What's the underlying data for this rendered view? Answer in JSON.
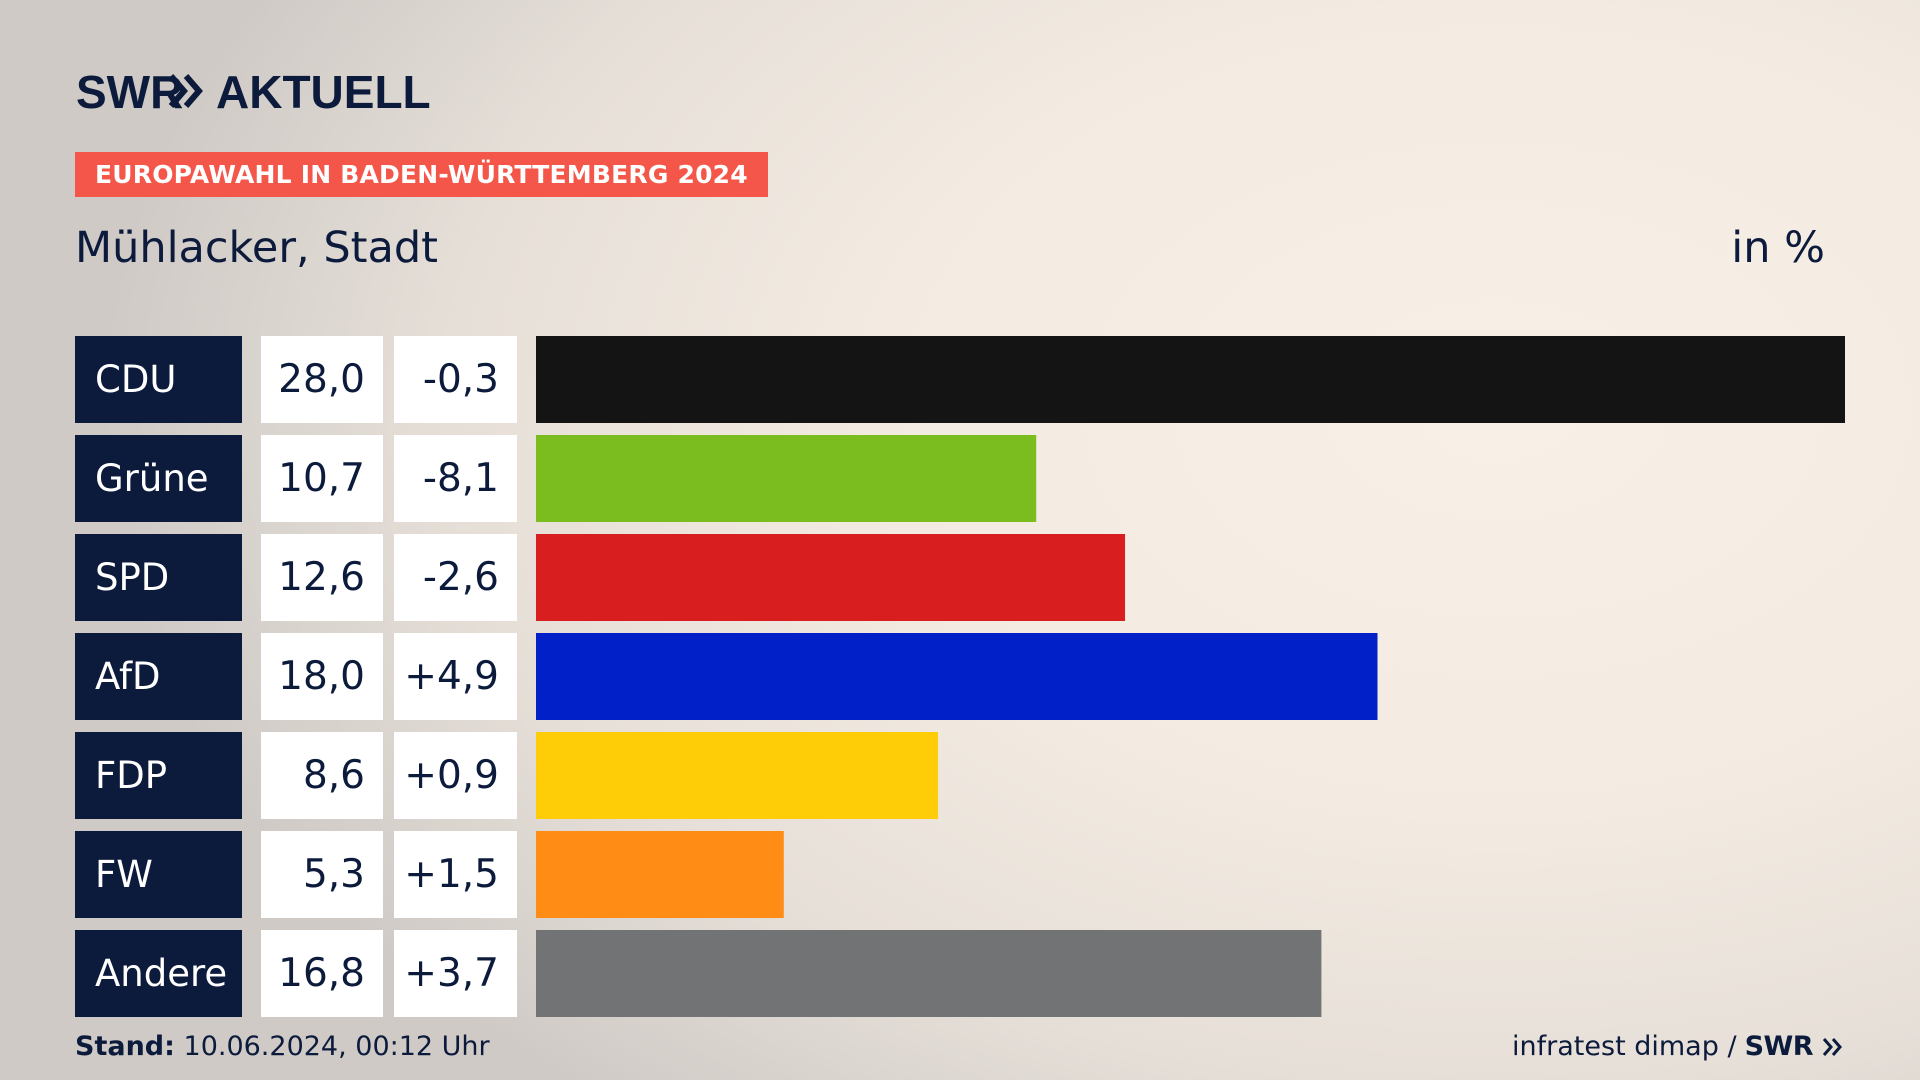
{
  "header": {
    "logo_text": "SWR",
    "logo_suffix": "AKTUELL",
    "badge": "EUROPAWAHL IN BADEN-WÜRTTEMBERG 2024",
    "subtitle": "Mühlacker, Stadt",
    "unit": "in %"
  },
  "colors": {
    "navy": "#0c1b3c",
    "badge": "#f4574a"
  },
  "chart_data": {
    "type": "bar",
    "orientation": "horizontal",
    "categories": [
      "CDU",
      "Grüne",
      "SPD",
      "AfD",
      "FDP",
      "FW",
      "Andere"
    ],
    "values": [
      28.0,
      10.7,
      12.6,
      18.0,
      8.6,
      5.3,
      16.8
    ],
    "value_labels": [
      "28,0",
      "10,7",
      "12,6",
      "18,0",
      "8,6",
      "5,3",
      "16,8"
    ],
    "changes": [
      -0.3,
      -8.1,
      -2.6,
      4.9,
      0.9,
      1.5,
      3.7
    ],
    "change_labels": [
      "-0,3",
      "-8,1",
      "-2,6",
      "+4,9",
      "+0,9",
      "+1,5",
      "+3,7"
    ],
    "colors": [
      "#141414",
      "#7bbd1e",
      "#d81e1e",
      "#0120c8",
      "#ffcc08",
      "#fe8c15",
      "#727375"
    ],
    "xlim": [
      0,
      28.0
    ],
    "grid": false,
    "legend": "none"
  },
  "footer": {
    "stand_label": "Stand:",
    "stand_value": "10.06.2024, 00:12 Uhr",
    "source": "infratest dimap /",
    "source_brand": "SWR"
  }
}
